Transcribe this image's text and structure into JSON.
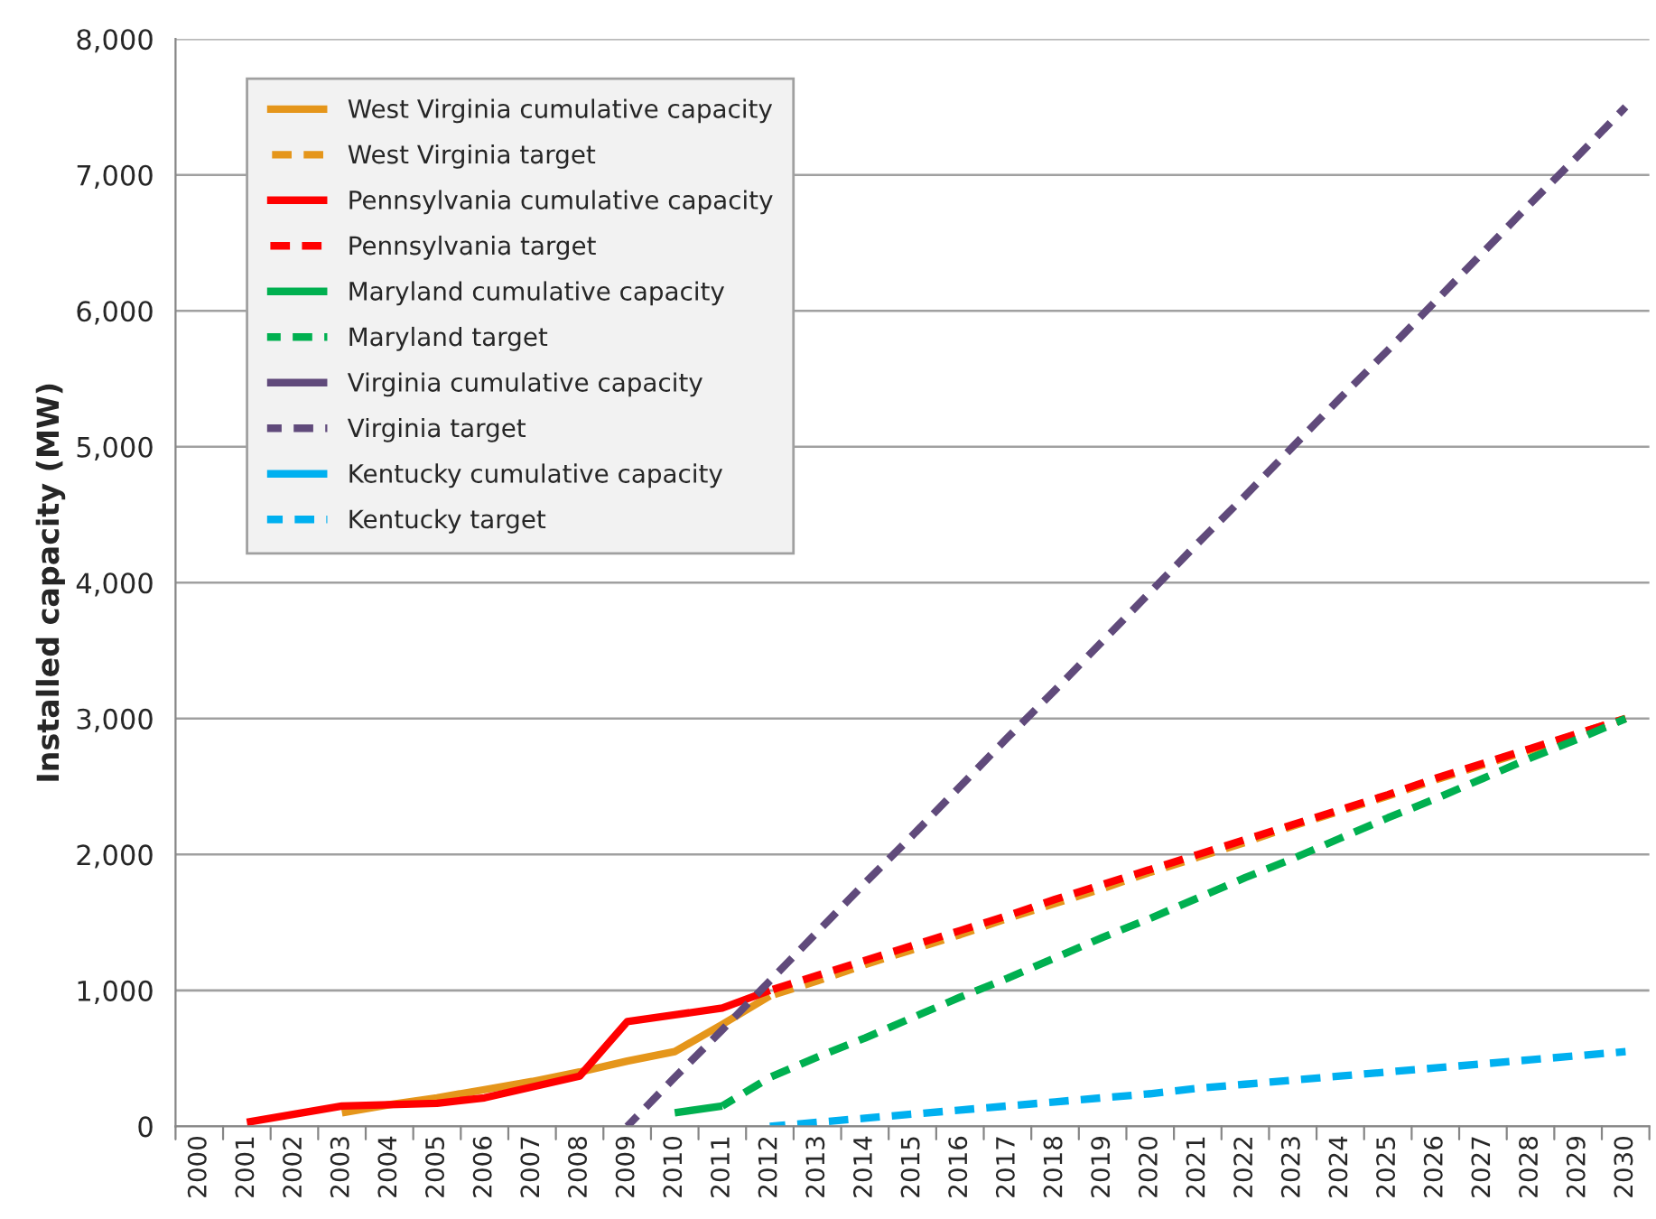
{
  "chart_data": {
    "type": "line",
    "ylabel": "Installed capacity (MW)",
    "categories": [
      "2000",
      "2001",
      "2002",
      "2003",
      "2004",
      "2005",
      "2006",
      "2007",
      "2008",
      "2009",
      "2010",
      "2011",
      "2012",
      "2013",
      "2014",
      "2015",
      "2016",
      "2017",
      "2018",
      "2019",
      "2020",
      "2021",
      "2022",
      "2023",
      "2024",
      "2025",
      "2026",
      "2027",
      "2028",
      "2029",
      "2030"
    ],
    "series": [
      {
        "name": "West Virginia cumulative capacity",
        "color": "#e5961b",
        "line_style": "solid",
        "values": [
          null,
          null,
          null,
          100,
          160,
          210,
          270,
          330,
          400,
          480,
          550,
          750,
          960,
          null,
          null,
          null,
          null,
          null,
          null,
          null,
          null,
          null,
          null,
          null,
          null,
          null,
          null,
          null,
          null,
          null,
          null
        ]
      },
      {
        "name": "West Virginia target",
        "color": "#e5961b",
        "line_style": "dashed",
        "values": [
          null,
          null,
          null,
          null,
          null,
          null,
          null,
          null,
          null,
          null,
          null,
          null,
          960,
          1070,
          1190,
          1300,
          1410,
          1530,
          1640,
          1750,
          1870,
          1980,
          2090,
          2210,
          2320,
          2430,
          2550,
          2660,
          2770,
          2890,
          3000
        ]
      },
      {
        "name": "Pennsylvania cumulative capacity",
        "color": "#ff0000",
        "line_style": "solid",
        "values": [
          null,
          30,
          90,
          150,
          160,
          170,
          210,
          290,
          370,
          770,
          820,
          870,
          1000,
          null,
          null,
          null,
          null,
          null,
          null,
          null,
          null,
          null,
          null,
          null,
          null,
          null,
          null,
          null,
          null,
          null,
          null
        ]
      },
      {
        "name": "Pennsylvania target",
        "color": "#ff0000",
        "line_style": "dashed",
        "values": [
          null,
          null,
          null,
          null,
          null,
          null,
          null,
          null,
          null,
          null,
          null,
          null,
          1000,
          1110,
          1220,
          1330,
          1440,
          1550,
          1670,
          1780,
          1890,
          2000,
          2110,
          2220,
          2330,
          2440,
          2560,
          2670,
          2780,
          2890,
          3000
        ]
      },
      {
        "name": "Maryland cumulative capacity",
        "color": "#00b050",
        "line_style": "solid",
        "values": [
          null,
          null,
          null,
          null,
          null,
          null,
          null,
          null,
          null,
          null,
          100,
          150,
          null,
          null,
          null,
          null,
          null,
          null,
          null,
          null,
          null,
          null,
          null,
          null,
          null,
          null,
          null,
          null,
          null,
          null,
          null
        ]
      },
      {
        "name": "Maryland target",
        "color": "#00b050",
        "line_style": "dashed",
        "values": [
          null,
          null,
          null,
          null,
          null,
          null,
          null,
          null,
          null,
          null,
          null,
          150,
          360,
          510,
          650,
          800,
          950,
          1090,
          1240,
          1390,
          1530,
          1680,
          1830,
          1970,
          2120,
          2270,
          2410,
          2560,
          2710,
          2850,
          3000
        ]
      },
      {
        "name": "Virginia cumulative capacity",
        "color": "#604a7b",
        "line_style": "solid",
        "values": [
          null,
          null,
          null,
          null,
          null,
          null,
          null,
          null,
          null,
          null,
          null,
          null,
          null,
          null,
          null,
          null,
          null,
          null,
          null,
          null,
          null,
          null,
          null,
          null,
          null,
          null,
          null,
          null,
          null,
          null,
          null
        ]
      },
      {
        "name": "Virginia target",
        "color": "#604a7b",
        "line_style": "dashed",
        "values": [
          null,
          null,
          null,
          null,
          null,
          null,
          null,
          null,
          null,
          0,
          360,
          710,
          1070,
          1430,
          1790,
          2140,
          2500,
          2860,
          3210,
          3570,
          3930,
          4290,
          4640,
          5000,
          5360,
          5710,
          6070,
          6430,
          6790,
          7140,
          7500
        ]
      },
      {
        "name": "Kentucky cumulative capacity",
        "color": "#00b0f0",
        "line_style": "solid",
        "values": [
          null,
          null,
          null,
          null,
          null,
          null,
          null,
          null,
          null,
          null,
          null,
          null,
          null,
          null,
          null,
          null,
          null,
          null,
          null,
          null,
          null,
          null,
          null,
          null,
          null,
          null,
          null,
          null,
          null,
          null,
          null
        ]
      },
      {
        "name": "Kentucky target",
        "color": "#00b0f0",
        "line_style": "dashed",
        "values": [
          null,
          null,
          null,
          null,
          null,
          null,
          null,
          null,
          null,
          null,
          null,
          null,
          0,
          30,
          60,
          90,
          120,
          150,
          180,
          210,
          240,
          280,
          310,
          340,
          370,
          400,
          430,
          460,
          490,
          520,
          550
        ]
      }
    ],
    "ylim": [
      0,
      8000
    ],
    "yticks": [
      {
        "value": 0,
        "label": "0"
      },
      {
        "value": 1000,
        "label": "1,000"
      },
      {
        "value": 2000,
        "label": "2,000"
      },
      {
        "value": 3000,
        "label": "3,000"
      },
      {
        "value": 4000,
        "label": "4,000"
      },
      {
        "value": 5000,
        "label": "5,000"
      },
      {
        "value": 6000,
        "label": "6,000"
      },
      {
        "value": 7000,
        "label": "7,000"
      },
      {
        "value": 8000,
        "label": "8,000"
      }
    ],
    "grid": "y",
    "legend": "top left",
    "marker": "none"
  }
}
